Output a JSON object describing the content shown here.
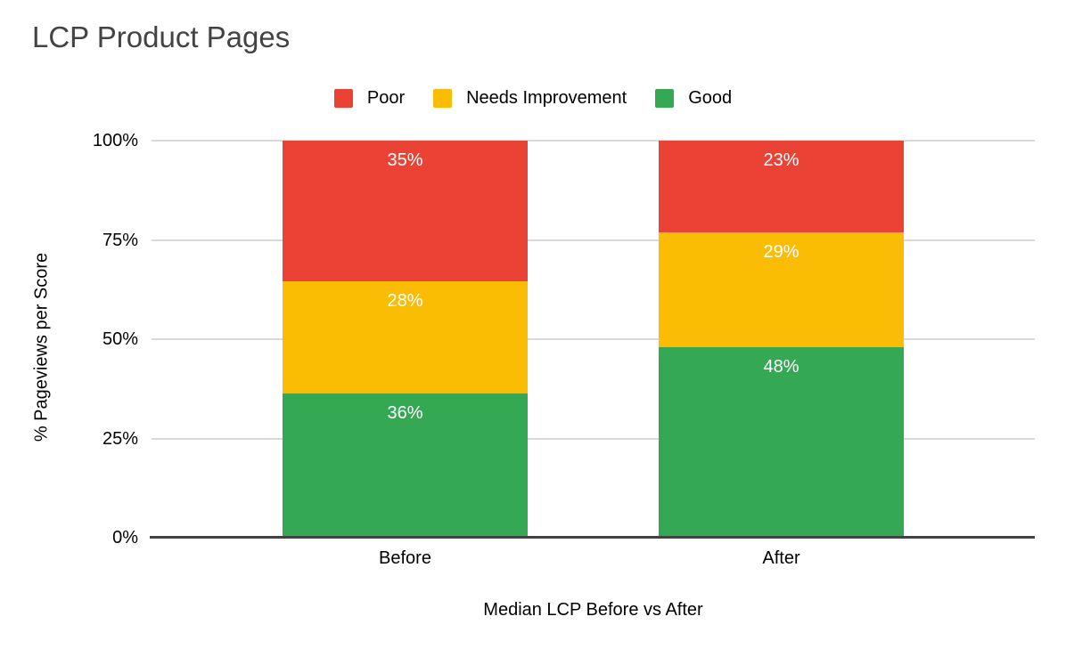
{
  "chart_data": {
    "type": "bar",
    "stacked": true,
    "title": "LCP Product Pages",
    "xlabel": "Median LCP Before vs After",
    "ylabel": "% Pageviews per Score",
    "categories": [
      "Before",
      "After"
    ],
    "series": [
      {
        "name": "Poor",
        "color": "#EA4335",
        "values": [
          35,
          23
        ]
      },
      {
        "name": "Needs Improvement",
        "color": "#FBBC04",
        "values": [
          28,
          29
        ]
      },
      {
        "name": "Good",
        "color": "#34A853",
        "values": [
          36,
          48
        ]
      }
    ],
    "y_ticks": [
      "0%",
      "25%",
      "50%",
      "75%",
      "100%"
    ],
    "ylim": [
      0,
      100
    ],
    "grid": true,
    "legend_position": "top",
    "value_suffix": "%",
    "colors": {
      "gridline": "#D9D9D9",
      "axis_line": "#424242",
      "title_text": "#434343",
      "axis_text": "#000000",
      "bar_label_text": "#FFFFFF",
      "background": "#FFFFFF"
    }
  }
}
